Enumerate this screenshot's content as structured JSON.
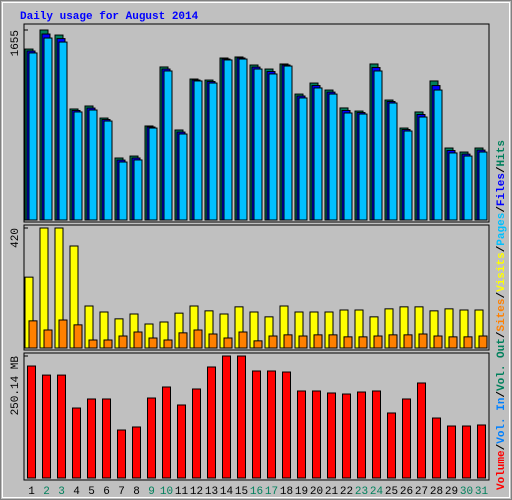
{
  "chart_data": [
    {
      "type": "bar",
      "title": "Daily usage for August 2014",
      "legend_separator": "/",
      "ylim": [
        0,
        1655
      ],
      "yticks": [
        1655
      ],
      "series": [
        {
          "name": "Hits",
          "color": "#00805c",
          "values": [
            1489,
            1655,
            1611,
            967,
            993,
            888,
            540,
            557,
            819,
            1333,
            784,
            1228,
            1219,
            1411,
            1420,
            1350,
            1315,
            1359,
            1097,
            1193,
            1132,
            976,
            949,
            1359,
            1045,
            801,
            941,
            1211,
            627,
            592,
            627
          ]
        },
        {
          "name": "Files",
          "color": "#0000ff",
          "values": [
            1472,
            1620,
            1580,
            954,
            975,
            875,
            522,
            540,
            810,
            1315,
            766,
            1219,
            1206,
            1402,
            1411,
            1332,
            1293,
            1350,
            1080,
            1171,
            1114,
            954,
            936,
            1328,
            1032,
            788,
            919,
            1171,
            605,
            574,
            609
          ]
        },
        {
          "name": "Pages",
          "color": "#00c0ff",
          "values": [
            1455,
            1585,
            1550,
            941,
            958,
            862,
            505,
            523,
            801,
            1298,
            749,
            1211,
            1193,
            1394,
            1402,
            1315,
            1272,
            1341,
            1063,
            1150,
            1097,
            932,
            923,
            1298,
            1019,
            775,
            897,
            1132,
            584,
            557,
            592
          ]
        }
      ]
    },
    {
      "type": "bar",
      "ylim": [
        0,
        420
      ],
      "yticks": [
        420
      ],
      "series": [
        {
          "name": "Visits",
          "color": "#ffff00",
          "values": [
            248,
            420,
            420,
            357,
            147,
            126,
            102,
            119,
            84,
            91,
            122,
            147,
            130,
            119,
            144,
            126,
            109,
            147,
            126,
            126,
            126,
            133,
            133,
            109,
            137,
            144,
            144,
            130,
            137,
            133,
            133
          ]
        },
        {
          "name": "Sites",
          "color": "#ff8000",
          "values": [
            95,
            63,
            98,
            81,
            28,
            28,
            42,
            56,
            35,
            28,
            53,
            63,
            49,
            35,
            56,
            25,
            42,
            46,
            42,
            46,
            46,
            39,
            39,
            42,
            46,
            46,
            49,
            42,
            39,
            39,
            42
          ]
        }
      ]
    },
    {
      "type": "bar",
      "ylim": [
        0,
        250.14
      ],
      "yticks": [
        {
          "value": 250.14,
          "label": "250.14 MB"
        }
      ],
      "categories": [
        "1",
        "2",
        "3",
        "4",
        "5",
        "6",
        "7",
        "8",
        "9",
        "10",
        "11",
        "12",
        "13",
        "14",
        "15",
        "16",
        "17",
        "18",
        "19",
        "20",
        "21",
        "22",
        "23",
        "24",
        "25",
        "26",
        "27",
        "28",
        "29",
        "30",
        "31"
      ],
      "highlight_categories": [
        1,
        2,
        8,
        9,
        15,
        16,
        22,
        23,
        29,
        30
      ],
      "highlight_color": "#00805c",
      "series": [
        {
          "name": "Volume",
          "color": "#ff0000",
          "values": [
            229.6,
            211,
            211,
            143.5,
            162,
            162,
            98.4,
            104.6,
            164,
            186.6,
            149.7,
            182.5,
            227.6,
            250.14,
            250.1,
            219.4,
            219.4,
            217.3,
            178.4,
            178.4,
            174.3,
            172.2,
            176.3,
            178.4,
            133.3,
            162,
            194.8,
            123,
            106.6,
            106.6,
            108.7
          ]
        }
      ],
      "extra_legend": [
        {
          "name": "Vol. In",
          "color": "#0080ff"
        },
        {
          "name": "Vol. Out",
          "color": "#00805c"
        }
      ]
    }
  ]
}
